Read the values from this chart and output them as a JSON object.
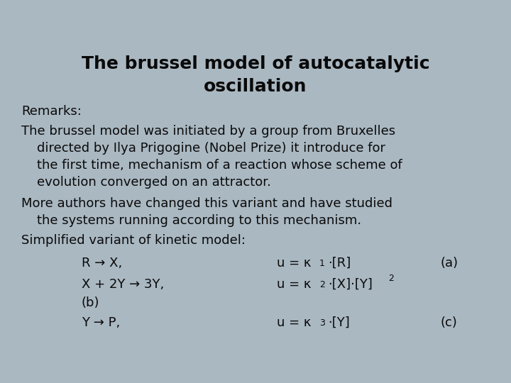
{
  "title": "The brussel model of autocatalytic\noscillation",
  "background_color": "#aab8c2",
  "text_color": "#0a0a0a",
  "title_fontsize": 18,
  "body_fontsize": 13,
  "remarks_line": "Remarks:",
  "para1_line1": "The brussel model was initiated by a group from Bruxelles",
  "para1_line2": "  directed by Ilya Prigogine (Nobel Prize) it introduce for",
  "para1_line3": "  the first time, mechanism of a reaction whose scheme of",
  "para1_line4": "  evolution converged on an attractor.",
  "para2_line1": "More authors have changed this variant and have studied",
  "para2_line2": "  the systems running according to this mechanism.",
  "para3_line1": "Simplified variant of kinetic model:"
}
